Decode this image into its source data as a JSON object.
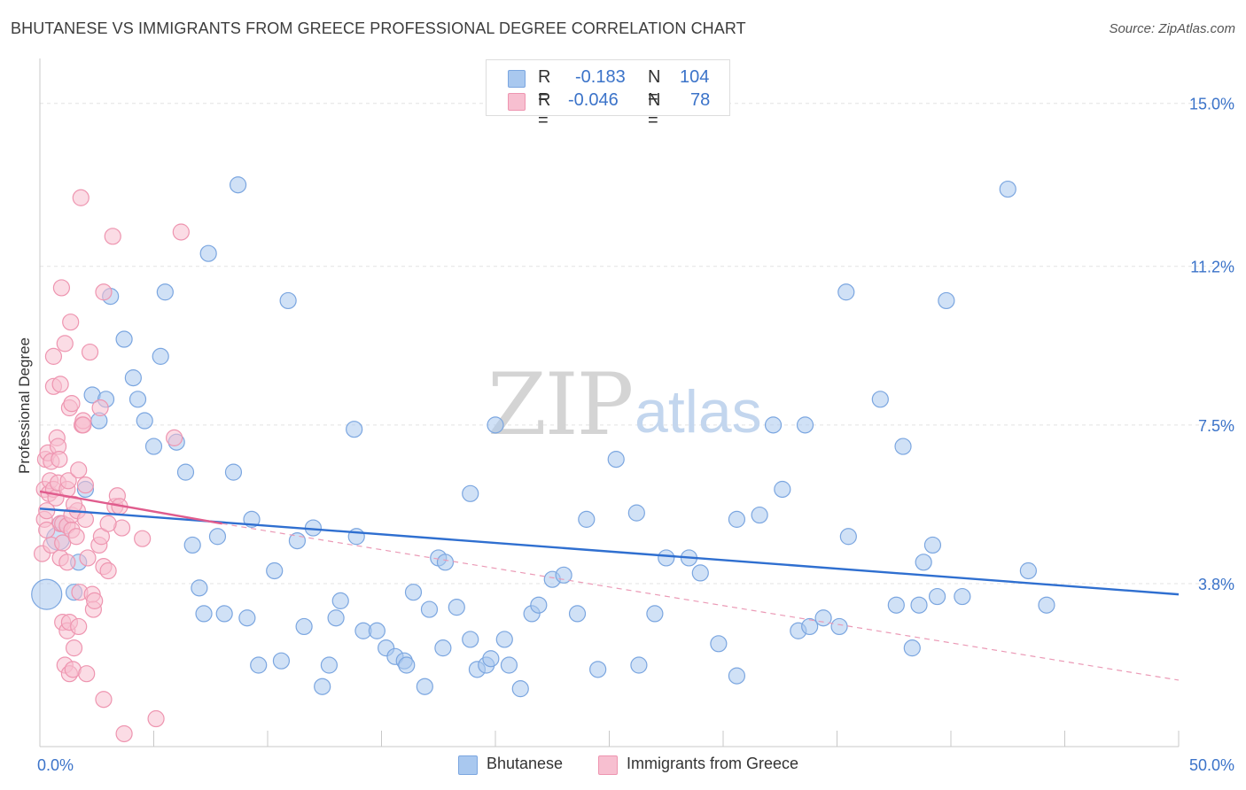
{
  "title": "BHUTANESE VS IMMIGRANTS FROM GREECE PROFESSIONAL DEGREE CORRELATION CHART",
  "source": "Source: ZipAtlas.com",
  "watermark": {
    "zip": "ZIP",
    "atlas": "atlas"
  },
  "legend": {
    "rows": [
      {
        "r_label": "R =",
        "r_value": "-0.183",
        "n_label": "N =",
        "n_value": "104",
        "color": "#a9c8ef",
        "border": "#7ba6e0"
      },
      {
        "r_label": "R =",
        "r_value": "-0.046",
        "n_label": "N =",
        "n_value": "78",
        "color": "#f7bfd0",
        "border": "#ee95b0"
      }
    ]
  },
  "bottom_legend": [
    {
      "label": "Bhutanese",
      "color": "#a9c8ef",
      "border": "#7ba6e0"
    },
    {
      "label": "Immigrants from Greece",
      "color": "#f7bfd0",
      "border": "#ee95b0"
    }
  ],
  "chart_data": {
    "type": "scatter",
    "title": "BHUTANESE VS IMMIGRANTS FROM GREECE PROFESSIONAL DEGREE CORRELATION CHART",
    "xlabel": "",
    "ylabel": "Professional Degree",
    "xlim": [
      0,
      50
    ],
    "ylim": [
      0,
      15.8
    ],
    "x_tick_labels": [
      "0.0%",
      "50.0%"
    ],
    "y_ticks": [
      3.8,
      7.5,
      11.2,
      15.0
    ],
    "y_tick_labels": [
      "3.8%",
      "7.5%",
      "11.2%",
      "15.0%"
    ],
    "grid": true,
    "legend_position": "top-center",
    "series": [
      {
        "name": "Bhutanese",
        "color": "#a9c8ef",
        "stroke": "#7ba6e0",
        "trend": {
          "x": [
            0,
            50
          ],
          "y": [
            5.55,
            3.55
          ],
          "style": "solid",
          "color": "#2f6fd0"
        },
        "points": [
          [
            0.3,
            3.55,
            "L"
          ],
          [
            0.8,
            4.85,
            "M"
          ],
          [
            2.0,
            6.0
          ],
          [
            1.7,
            4.3
          ],
          [
            1.5,
            3.6
          ],
          [
            2.3,
            8.2
          ],
          [
            2.9,
            8.1
          ],
          [
            2.6,
            7.6
          ],
          [
            3.1,
            10.5
          ],
          [
            3.7,
            9.5
          ],
          [
            4.1,
            8.6
          ],
          [
            4.3,
            8.1
          ],
          [
            4.6,
            7.6
          ],
          [
            5.3,
            9.1
          ],
          [
            5.5,
            10.6
          ],
          [
            5.0,
            7.0
          ],
          [
            6.0,
            7.1
          ],
          [
            6.4,
            6.4
          ],
          [
            7.4,
            11.5
          ],
          [
            6.7,
            4.7
          ],
          [
            8.7,
            13.1
          ],
          [
            8.5,
            6.4
          ],
          [
            9.3,
            5.3
          ],
          [
            9.1,
            3.0
          ],
          [
            7.0,
            3.7
          ],
          [
            7.2,
            3.1
          ],
          [
            8.1,
            3.1
          ],
          [
            7.8,
            4.9
          ],
          [
            9.6,
            1.9
          ],
          [
            10.3,
            4.1
          ],
          [
            10.6,
            2.0
          ],
          [
            10.9,
            10.4
          ],
          [
            11.3,
            4.8
          ],
          [
            11.6,
            2.8
          ],
          [
            12.0,
            5.1
          ],
          [
            12.4,
            1.4
          ],
          [
            12.7,
            1.9
          ],
          [
            13.0,
            3.0
          ],
          [
            13.2,
            3.4
          ],
          [
            13.9,
            4.9
          ],
          [
            13.8,
            7.4
          ],
          [
            14.2,
            2.7
          ],
          [
            14.8,
            2.7
          ],
          [
            15.2,
            2.3
          ],
          [
            15.6,
            2.1
          ],
          [
            16.0,
            2.0
          ],
          [
            16.1,
            1.9
          ],
          [
            16.4,
            3.6
          ],
          [
            16.9,
            1.4
          ],
          [
            17.1,
            3.2
          ],
          [
            17.5,
            4.4
          ],
          [
            17.8,
            4.3
          ],
          [
            17.7,
            2.3
          ],
          [
            18.3,
            3.25
          ],
          [
            18.9,
            5.9
          ],
          [
            18.9,
            2.5
          ],
          [
            19.2,
            1.8
          ],
          [
            19.6,
            1.9
          ],
          [
            19.8,
            2.05
          ],
          [
            20.0,
            7.5
          ],
          [
            20.4,
            2.5
          ],
          [
            20.6,
            1.9
          ],
          [
            21.1,
            1.35
          ],
          [
            21.6,
            3.1
          ],
          [
            21.9,
            3.3
          ],
          [
            22.5,
            3.9
          ],
          [
            23.0,
            4.0
          ],
          [
            23.6,
            3.1
          ],
          [
            24.0,
            5.3
          ],
          [
            24.5,
            1.8
          ],
          [
            25.3,
            6.7
          ],
          [
            26.2,
            5.45
          ],
          [
            26.3,
            1.9
          ],
          [
            27.0,
            3.1
          ],
          [
            27.5,
            4.4
          ],
          [
            28.5,
            4.4
          ],
          [
            29.0,
            4.05
          ],
          [
            29.8,
            2.4
          ],
          [
            30.6,
            5.3
          ],
          [
            30.6,
            1.65
          ],
          [
            31.6,
            5.4
          ],
          [
            32.2,
            7.5
          ],
          [
            32.6,
            6.0
          ],
          [
            33.6,
            7.5
          ],
          [
            33.3,
            2.7
          ],
          [
            33.8,
            2.8
          ],
          [
            34.4,
            3.0
          ],
          [
            35.1,
            2.8
          ],
          [
            35.4,
            10.6
          ],
          [
            35.5,
            4.9
          ],
          [
            36.9,
            8.1
          ],
          [
            37.6,
            3.3
          ],
          [
            37.9,
            7.0
          ],
          [
            38.3,
            2.3
          ],
          [
            38.6,
            3.3
          ],
          [
            38.8,
            4.3
          ],
          [
            39.2,
            4.7
          ],
          [
            39.4,
            3.5
          ],
          [
            39.8,
            10.4
          ],
          [
            40.5,
            3.5
          ],
          [
            42.5,
            13.0
          ],
          [
            43.4,
            4.1
          ],
          [
            44.2,
            3.3
          ],
          [
            0.9,
            5.2
          ]
        ]
      },
      {
        "name": "Immigrants from Greece",
        "color": "#f7bfd0",
        "stroke": "#ee95b0",
        "trend": {
          "x": [
            0,
            8
          ],
          "y": [
            5.95,
            5.2
          ],
          "style": "solid",
          "color": "#e05c8d"
        },
        "trend_extended": {
          "x": [
            8,
            50
          ],
          "y": [
            5.2,
            1.55
          ],
          "style": "dashed",
          "color": "#eb9ab6"
        },
        "points": [
          [
            0.1,
            4.5
          ],
          [
            0.2,
            5.3
          ],
          [
            0.2,
            6.0
          ],
          [
            0.25,
            6.7
          ],
          [
            0.3,
            5.5
          ],
          [
            0.35,
            6.85
          ],
          [
            0.4,
            5.9
          ],
          [
            0.45,
            6.2
          ],
          [
            0.5,
            4.7
          ],
          [
            0.5,
            6.65
          ],
          [
            0.6,
            6.0
          ],
          [
            0.6,
            8.4
          ],
          [
            0.6,
            9.1
          ],
          [
            0.7,
            5.8
          ],
          [
            0.75,
            7.2
          ],
          [
            0.8,
            6.15
          ],
          [
            0.8,
            7.0
          ],
          [
            0.85,
            6.7
          ],
          [
            0.9,
            8.45
          ],
          [
            0.9,
            5.2
          ],
          [
            0.9,
            4.4
          ],
          [
            0.95,
            10.7
          ],
          [
            1.0,
            4.75
          ],
          [
            1.0,
            2.9
          ],
          [
            1.0,
            5.2
          ],
          [
            1.1,
            1.9
          ],
          [
            1.1,
            9.4
          ],
          [
            1.2,
            4.3
          ],
          [
            1.2,
            5.15
          ],
          [
            1.2,
            6.0
          ],
          [
            1.2,
            2.7
          ],
          [
            1.25,
            6.2
          ],
          [
            1.3,
            7.9
          ],
          [
            1.3,
            2.9
          ],
          [
            1.3,
            1.7
          ],
          [
            1.35,
            9.9
          ],
          [
            1.4,
            5.4
          ],
          [
            1.4,
            5.05
          ],
          [
            1.4,
            8.0
          ],
          [
            1.45,
            1.8
          ],
          [
            1.5,
            2.3
          ],
          [
            1.6,
            4.9
          ],
          [
            1.65,
            5.5
          ],
          [
            1.7,
            6.45
          ],
          [
            1.7,
            2.8
          ],
          [
            1.75,
            3.6
          ],
          [
            1.8,
            12.8
          ],
          [
            1.85,
            7.5
          ],
          [
            1.9,
            7.6
          ],
          [
            1.9,
            7.5
          ],
          [
            2.0,
            5.3
          ],
          [
            2.0,
            6.1
          ],
          [
            2.05,
            1.7
          ],
          [
            2.1,
            4.4
          ],
          [
            2.2,
            9.2
          ],
          [
            2.3,
            3.55
          ],
          [
            2.35,
            3.2
          ],
          [
            2.4,
            3.4
          ],
          [
            2.6,
            4.7
          ],
          [
            2.65,
            7.9
          ],
          [
            2.7,
            4.9
          ],
          [
            2.8,
            4.2
          ],
          [
            2.8,
            1.1
          ],
          [
            2.8,
            10.6
          ],
          [
            3.0,
            4.1
          ],
          [
            3.2,
            11.9
          ],
          [
            3.3,
            5.6
          ],
          [
            3.4,
            5.85
          ],
          [
            3.5,
            5.6
          ],
          [
            3.6,
            5.1
          ],
          [
            3.7,
            0.3
          ],
          [
            4.5,
            4.85
          ],
          [
            5.1,
            0.65
          ],
          [
            5.9,
            7.2
          ],
          [
            6.2,
            12.0
          ],
          [
            3.0,
            5.2
          ],
          [
            0.3,
            5.05
          ],
          [
            1.5,
            5.65
          ]
        ]
      }
    ]
  }
}
